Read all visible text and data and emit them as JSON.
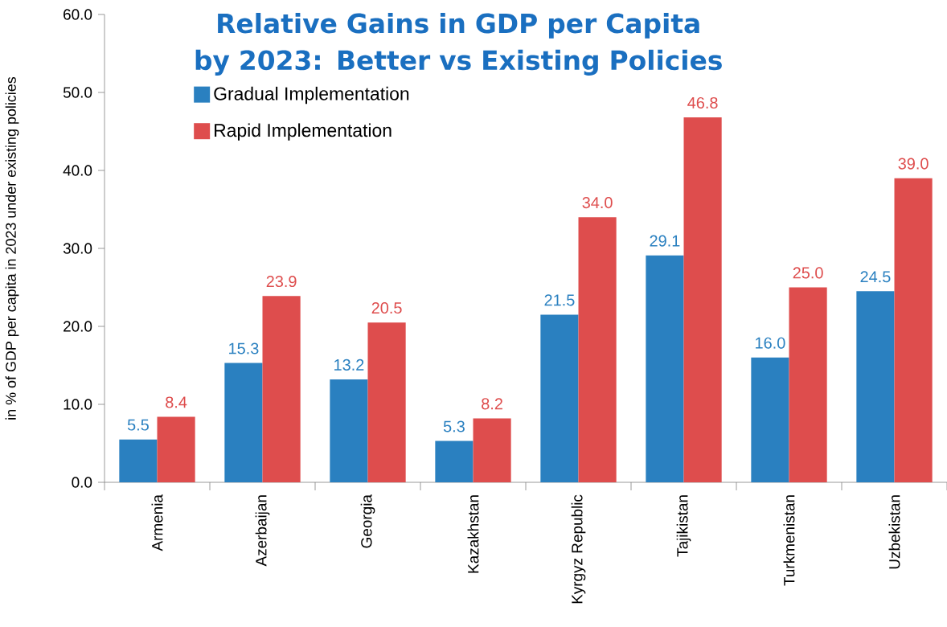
{
  "chart_data": {
    "type": "bar",
    "title": "Relative Gains in GDP per Capita by 2023: Better vs Existing Policies",
    "ylabel": "in % of GDP per capita in 2023 under existing policies",
    "categories": [
      "Armenia",
      "Azerbaijan",
      "Georgia",
      "Kazakhstan",
      "Kyrgyz Republic",
      "Tajikistan",
      "Turkmenistan",
      "Uzbekistan"
    ],
    "series": [
      {
        "name": "Gradual Implementation",
        "color": "#2a80c0",
        "values": [
          5.5,
          15.3,
          13.2,
          5.3,
          21.5,
          29.1,
          16.0,
          24.5
        ],
        "value_labels": [
          "5.5",
          "15.3",
          "13.2",
          "5.3",
          "21.5",
          "29.1",
          "16.0",
          "24.5"
        ]
      },
      {
        "name": "Rapid Implementation",
        "color": "#de4d4d",
        "values": [
          8.4,
          23.9,
          20.5,
          8.2,
          34.0,
          46.8,
          25.0,
          39.0
        ],
        "value_labels": [
          "8.4",
          "23.9",
          "20.5",
          "8.2",
          "34.0",
          "46.8",
          "25.0",
          "39.0"
        ]
      }
    ],
    "ylim": [
      0,
      60
    ],
    "yticks": [
      {
        "value": 0,
        "label": "0.0"
      },
      {
        "value": 10,
        "label": "10.0"
      },
      {
        "value": 20,
        "label": "20.0"
      },
      {
        "value": 30,
        "label": "30.0"
      },
      {
        "value": 40,
        "label": "40.0"
      },
      {
        "value": 50,
        "label": "50.0"
      },
      {
        "value": 60,
        "label": "60.0"
      }
    ],
    "grid": false,
    "legend": "top left"
  }
}
